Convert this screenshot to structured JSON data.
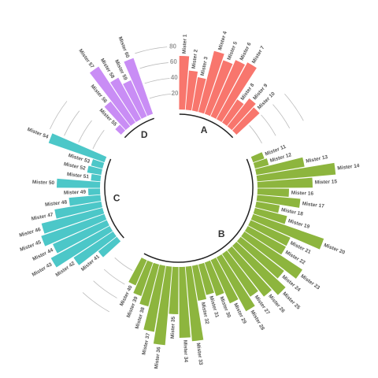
{
  "chart_data": {
    "type": "circular-bar",
    "ylim": [
      0,
      120
    ],
    "yticks": [
      20,
      40,
      60,
      80
    ],
    "series": [
      {
        "name": "A",
        "color": "#F8766D",
        "categories": [
          "Mister 1",
          "Mister 2",
          "Mister 3",
          "Mister 4",
          "Mister 5",
          "Mister 6",
          "Mister 7",
          "Mister 8",
          "Mister 9",
          "Mister 10"
        ],
        "values": [
          68,
          50,
          43,
          80,
          72,
          78,
          82,
          35,
          45,
          40
        ]
      },
      {
        "name": "B",
        "color": "#8DB53E",
        "categories": [
          "Mister 11",
          "Mister 12",
          "Mister 13",
          "Mister 14",
          "Mister 15",
          "Mister 16",
          "Mister 17",
          "Mister 18",
          "Mister 19",
          "Mister 20",
          "Mister 21",
          "Mister 22",
          "Mister 23",
          "Mister 24",
          "Mister 25",
          "Mister 26",
          "Mister 27",
          "Mister 28",
          "Mister 29",
          "Mister 30",
          "Mister 31",
          "Mister 32",
          "Mister 33",
          "Mister 34",
          "Mister 35",
          "Mister 36",
          "Mister 37",
          "Mister 38",
          "Mister 39",
          "Mister 40"
        ],
        "values": [
          15,
          18,
          62,
          100,
          70,
          40,
          55,
          30,
          42,
          95,
          55,
          55,
          88,
          70,
          85,
          75,
          65,
          78,
          60,
          45,
          40,
          45,
          95,
          90,
          60,
          100,
          85,
          55,
          45,
          35
        ]
      },
      {
        "name": "C",
        "color": "#4CC7C8",
        "categories": [
          "Mister 41",
          "Mister 42",
          "Mister 43",
          "Mister 44",
          "Mister 45",
          "Mister 46",
          "Mister 47",
          "Mister 48",
          "Mister 49",
          "Mister 50",
          "Mister 51",
          "Mister 52",
          "Mister 53",
          "Mister 54"
        ],
        "values": [
          30,
          60,
          85,
          75,
          85,
          80,
          60,
          40,
          15,
          55,
          12,
          18,
          15,
          75
        ]
      },
      {
        "name": "D",
        "color": "#C98DF5",
        "categories": [
          "Mister 55",
          "Mister 56",
          "Mister 57",
          "Mister 58",
          "Mister 59",
          "Mister 60"
        ],
        "values": [
          10,
          40,
          85,
          60,
          50,
          75
        ]
      }
    ]
  }
}
